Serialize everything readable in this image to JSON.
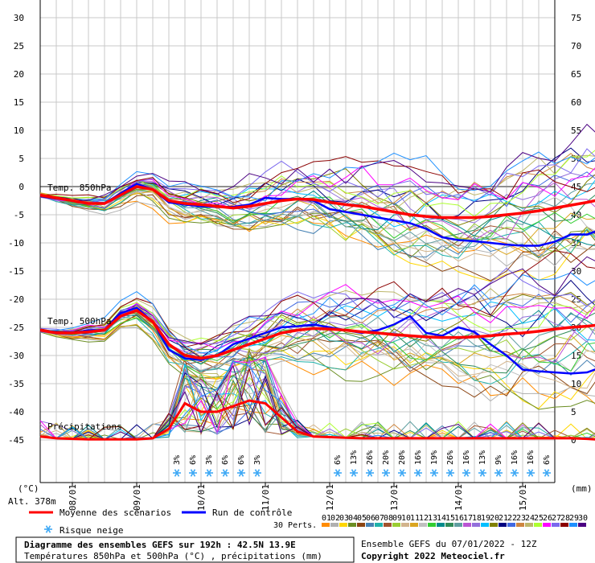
{
  "chart_data": {
    "type": "line",
    "title": "Diagramme des ensembles GEFS sur 192h : 42.5N 13.9E",
    "subtitle": "Températures 850hPa et 500hPa (°C) , précipitations (mm)",
    "left_axis_unit": "(°C)",
    "right_axis_unit": "(mm)",
    "altitude": "Alt. 378m",
    "left_ticks": [
      30,
      25,
      20,
      15,
      10,
      5,
      0,
      -5,
      -10,
      -15,
      -20,
      -25,
      -30,
      -35,
      -40,
      -45
    ],
    "right_ticks": [
      75,
      70,
      65,
      60,
      55,
      50,
      45,
      40,
      35,
      30,
      25,
      20,
      15,
      10,
      5,
      0
    ],
    "ylim_temp": [
      -45,
      30
    ],
    "ylim_precip": [
      0,
      75
    ],
    "x_range_hours": [
      0,
      192
    ],
    "x_step_hours": 6,
    "date_labels": [
      {
        "label": "08/01",
        "hour": 12
      },
      {
        "label": "09/01",
        "hour": 36
      },
      {
        "label": "10/01",
        "hour": 60
      },
      {
        "label": "11/01",
        "hour": 84
      },
      {
        "label": "12/01",
        "hour": 108
      },
      {
        "label": "13/01",
        "hour": 132
      },
      {
        "label": "14/01",
        "hour": 156
      },
      {
        "label": "15/01",
        "hour": 180
      }
    ],
    "section_labels": {
      "t850": "Temp. 850hPa",
      "t500": "Temp. 500hPa",
      "precip": "Précipitations"
    },
    "snow_risk": [
      {
        "hour": 54,
        "pct": "3%"
      },
      {
        "hour": 60,
        "pct": "6%"
      },
      {
        "hour": 66,
        "pct": "3%"
      },
      {
        "hour": 72,
        "pct": "6%"
      },
      {
        "hour": 78,
        "pct": "6%"
      },
      {
        "hour": 84,
        "pct": "3%"
      },
      {
        "hour": 114,
        "pct": "6%"
      },
      {
        "hour": 120,
        "pct": "13%"
      },
      {
        "hour": 126,
        "pct": "26%"
      },
      {
        "hour": 132,
        "pct": "20%"
      },
      {
        "hour": 138,
        "pct": "20%"
      },
      {
        "hour": 144,
        "pct": "16%"
      },
      {
        "hour": 150,
        "pct": "19%"
      },
      {
        "hour": 156,
        "pct": "26%"
      },
      {
        "hour": 162,
        "pct": "16%"
      },
      {
        "hour": 168,
        "pct": "13%"
      },
      {
        "hour": 174,
        "pct": "9%"
      },
      {
        "hour": 180,
        "pct": "16%"
      },
      {
        "hour": 186,
        "pct": "16%"
      },
      {
        "hour": 192,
        "pct": "6%"
      }
    ],
    "series": [
      {
        "name": "Moyenne des scénarios",
        "color": "#ff0000",
        "t850": [
          -1.5,
          -2,
          -2.5,
          -3,
          -3,
          -1.5,
          0,
          -0.5,
          -2.5,
          -3,
          -3.2,
          -3.5,
          -3.8,
          -3.5,
          -3,
          -2.5,
          -2.2,
          -2.3,
          -2.8,
          -3.2,
          -3.5,
          -4,
          -4.5,
          -5,
          -5.3,
          -5.5,
          -5.5,
          -5.5,
          -5.3,
          -5,
          -4.7,
          -4.3,
          -3.8,
          -3.3,
          -2.8,
          -2.2
        ],
        "t500": [
          -25.5,
          -26,
          -26,
          -25.8,
          -25.5,
          -23,
          -22,
          -24,
          -28,
          -30,
          -30.5,
          -30,
          -29,
          -28,
          -27,
          -26,
          -25.5,
          -25.2,
          -25.3,
          -25.5,
          -25.8,
          -26,
          -26.3,
          -26.5,
          -26.7,
          -26.8,
          -26.8,
          -26.7,
          -26.5,
          -26.2,
          -26,
          -25.7,
          -25.3,
          -25,
          -24.8,
          -24.5
        ],
        "precip": [
          0.6,
          0.3,
          0.2,
          0.1,
          0.1,
          0.1,
          0.1,
          0.3,
          2,
          6.5,
          5,
          5,
          6,
          7,
          6.5,
          4,
          1.5,
          0.6,
          0.5,
          0.4,
          0.3,
          0.3,
          0.3,
          0.3,
          0.3,
          0.3,
          0.3,
          0.3,
          0.3,
          0.3,
          0.3,
          0.3,
          0.3,
          0.3,
          0.2,
          0
        ]
      },
      {
        "name": "Run de contrôle",
        "color": "#0000ff",
        "t850": [
          -1.5,
          -2,
          -2.5,
          -3,
          -3,
          -1.2,
          0.5,
          -0.5,
          -2.8,
          -3.2,
          -3.5,
          -3.6,
          -3.6,
          -3.2,
          -2,
          -2.2,
          -2.2,
          -2.5,
          -4,
          -4.5,
          -5,
          -5.5,
          -6,
          -6.5,
          -7.5,
          -9,
          -9.5,
          -9.7,
          -10,
          -10.3,
          -10.5,
          -10.5,
          -9.8,
          -8.5,
          -8.5,
          -7.5
        ],
        "t500": [
          -25.5,
          -26,
          -26,
          -25.5,
          -25.5,
          -22.5,
          -21.5,
          -24,
          -29,
          -30.5,
          -30.8,
          -30,
          -28,
          -27,
          -26,
          -25,
          -24.8,
          -24.5,
          -25,
          -25.5,
          -26,
          -25.5,
          -24.5,
          -23,
          -26,
          -26.5,
          -25,
          -25.8,
          -28,
          -30,
          -32.5,
          -32.8,
          -33,
          -33.2,
          -33,
          -32
        ]
      }
    ],
    "perturbations": {
      "label": "30 Perts.",
      "count": 30,
      "colors": [
        "#ff8c00",
        "#b0b0b0",
        "#ffd700",
        "#6b8e23",
        "#8b4513",
        "#4682b4",
        "#20b2aa",
        "#a0522d",
        "#9acd32",
        "#d2b48c",
        "#daa520",
        "#c0c0c0",
        "#32cd32",
        "#008b8b",
        "#2e8b57",
        "#5f9ea0",
        "#ba55d3",
        "#9370db",
        "#00bfff",
        "#808000",
        "#000080",
        "#4169e1",
        "#cd853f",
        "#bdb76b",
        "#adff2f",
        "#ff00ff",
        "#7b68ee",
        "#8b0000",
        "#1e90ff",
        "#4b0082"
      ]
    }
  },
  "legend": {
    "mean": "Moyenne des scénarios",
    "control": "Run de contrôle",
    "snow": "Risque neige",
    "mean_color": "#ff0000",
    "control_color": "#0000ff",
    "snow_color": "#3fa9f5"
  },
  "footer": {
    "title": "Diagramme des ensembles GEFS sur 192h : 42.5N 13.9E",
    "subtitle": "Températures 850hPa et 500hPa (°C) , précipitations (mm)",
    "ensemble": "Ensemble GEFS du 07/01/2022 - 12Z",
    "copyright": "Copyright 2022 Meteociel.fr"
  }
}
